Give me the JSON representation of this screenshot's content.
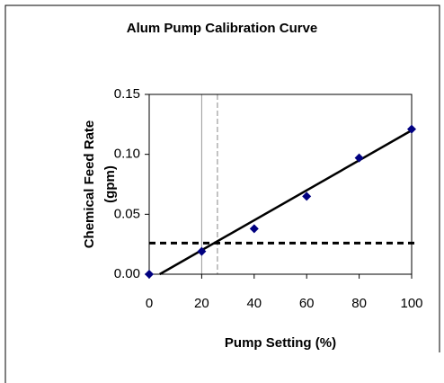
{
  "chart_data": {
    "type": "scatter",
    "title": "Alum Pump Calibration Curve",
    "xlabel": "Pump Setting (%)",
    "ylabel": [
      "Chemical Feed Rate",
      "(gpm)"
    ],
    "series": [
      {
        "color": "#000080",
        "x": [
          0,
          20,
          40,
          60,
          80,
          100
        ],
        "values": [
          0,
          0.019,
          0.038,
          0.065,
          0.097,
          0.121
        ]
      }
    ],
    "trendline": {
      "color": "#000000",
      "x": [
        4,
        100
      ],
      "values": [
        0,
        0.12
      ]
    },
    "reference_lines": {
      "horizontal": [
        0.026
      ],
      "vertical": [
        20,
        26
      ]
    },
    "xlim": [
      0,
      100
    ],
    "xticks": [
      0,
      20,
      40,
      60,
      80,
      100
    ],
    "ylim": [
      0,
      0.15
    ],
    "yticks": [
      {
        "value": 0,
        "label": "0.00"
      },
      {
        "value": 0.05,
        "label": "0.05"
      },
      {
        "value": 0.1,
        "label": "0.10"
      },
      {
        "value": 0.15,
        "label": "0.15"
      }
    ]
  }
}
